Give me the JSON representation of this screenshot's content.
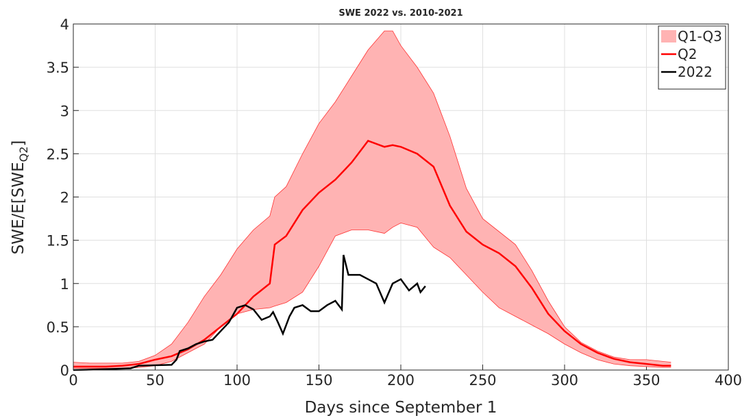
{
  "chart_data": {
    "type": "line",
    "title": "SWE 2022 vs. 2010-2021",
    "xlabel": "Days since September 1",
    "ylabel": {
      "main": "SWE/E[SWE",
      "sub": "Q2",
      "end": "]"
    },
    "xlim": [
      0,
      400
    ],
    "xticks": [
      0,
      50,
      100,
      150,
      200,
      250,
      300,
      350,
      400
    ],
    "ylim": [
      0,
      4
    ],
    "yticks": [
      0,
      0.5,
      1,
      1.5,
      2,
      2.5,
      3,
      3.5,
      4
    ],
    "grid": true,
    "legend": "upper right",
    "series": [
      {
        "name": "Q1-Q3",
        "kind": "band",
        "color": "#ffb3b3",
        "edge": "#ff3030",
        "x": [
          0,
          10,
          20,
          30,
          40,
          50,
          60,
          70,
          80,
          90,
          100,
          110,
          120,
          123,
          130,
          140,
          150,
          160,
          170,
          180,
          190,
          195,
          200,
          210,
          220,
          230,
          240,
          250,
          260,
          270,
          280,
          290,
          300,
          310,
          320,
          330,
          340,
          350,
          360,
          365
        ],
        "lower": [
          0.02,
          0.02,
          0.02,
          0.02,
          0.03,
          0.05,
          0.1,
          0.2,
          0.3,
          0.5,
          0.65,
          0.7,
          0.72,
          0.74,
          0.78,
          0.9,
          1.2,
          1.55,
          1.62,
          1.62,
          1.58,
          1.65,
          1.7,
          1.65,
          1.42,
          1.3,
          1.1,
          0.9,
          0.72,
          0.62,
          0.52,
          0.42,
          0.3,
          0.2,
          0.12,
          0.07,
          0.05,
          0.04,
          0.03,
          0.03
        ],
        "upper": [
          0.09,
          0.08,
          0.08,
          0.08,
          0.1,
          0.17,
          0.3,
          0.55,
          0.85,
          1.1,
          1.4,
          1.62,
          1.78,
          2.0,
          2.12,
          2.5,
          2.85,
          3.1,
          3.4,
          3.7,
          3.92,
          3.92,
          3.75,
          3.5,
          3.2,
          2.7,
          2.1,
          1.75,
          1.6,
          1.45,
          1.15,
          0.8,
          0.5,
          0.32,
          0.22,
          0.15,
          0.12,
          0.12,
          0.1,
          0.09
        ]
      },
      {
        "name": "Q2",
        "color": "#ff0000",
        "x": [
          0,
          10,
          20,
          30,
          40,
          50,
          60,
          70,
          80,
          90,
          100,
          110,
          120,
          123,
          130,
          140,
          150,
          160,
          170,
          180,
          190,
          195,
          200,
          210,
          220,
          230,
          240,
          250,
          260,
          270,
          280,
          290,
          300,
          310,
          320,
          330,
          340,
          350,
          360,
          365
        ],
        "values": [
          0.04,
          0.04,
          0.04,
          0.05,
          0.07,
          0.12,
          0.16,
          0.24,
          0.35,
          0.5,
          0.65,
          0.85,
          1.0,
          1.45,
          1.55,
          1.85,
          2.05,
          2.2,
          2.4,
          2.65,
          2.58,
          2.6,
          2.58,
          2.5,
          2.35,
          1.9,
          1.6,
          1.45,
          1.35,
          1.2,
          0.95,
          0.65,
          0.45,
          0.3,
          0.2,
          0.13,
          0.09,
          0.07,
          0.05,
          0.05
        ]
      },
      {
        "name": "2022",
        "color": "#000000",
        "x": [
          0,
          20,
          35,
          40,
          60,
          63,
          65,
          70,
          75,
          80,
          85,
          90,
          95,
          100,
          105,
          110,
          115,
          120,
          122,
          125,
          128,
          132,
          135,
          140,
          145,
          150,
          155,
          160,
          164,
          165,
          168,
          175,
          180,
          185,
          190,
          195,
          200,
          205,
          210,
          212,
          215
        ],
        "values": [
          0,
          0.01,
          0.02,
          0.05,
          0.06,
          0.12,
          0.22,
          0.25,
          0.3,
          0.33,
          0.35,
          0.45,
          0.55,
          0.72,
          0.75,
          0.7,
          0.58,
          0.62,
          0.67,
          0.55,
          0.42,
          0.62,
          0.72,
          0.75,
          0.68,
          0.68,
          0.75,
          0.8,
          0.7,
          1.33,
          1.1,
          1.1,
          1.05,
          1.0,
          0.78,
          1.0,
          1.05,
          0.92,
          1.0,
          0.9,
          0.97
        ]
      }
    ]
  }
}
